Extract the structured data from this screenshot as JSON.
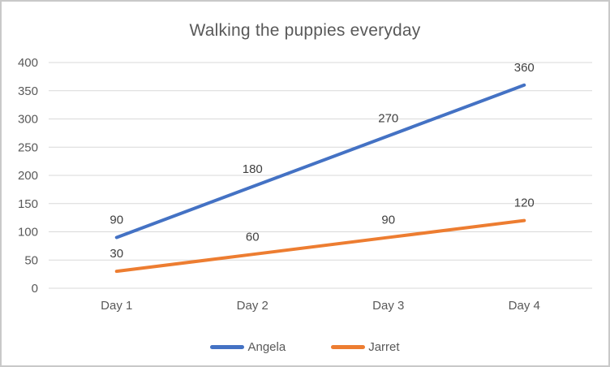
{
  "chart_data": {
    "type": "line",
    "title": "Walking the puppies everyday",
    "categories": [
      "Day 1",
      "Day 2",
      "Day 3",
      "Day 4"
    ],
    "series": [
      {
        "name": "Angela",
        "values": [
          90,
          180,
          270,
          360
        ],
        "color": "#4472C4"
      },
      {
        "name": "Jarret",
        "values": [
          30,
          60,
          90,
          120
        ],
        "color": "#ED7D31"
      }
    ],
    "xlabel": "",
    "ylabel": "",
    "ylim": [
      0,
      400
    ],
    "ytick_step": 50,
    "grid": true,
    "gridline_color": "#d9d9d9",
    "axis_label_color": "#595959",
    "data_label_color": "#404040",
    "title_color": "#595959",
    "legend_position": "bottom",
    "data_labels": true
  }
}
